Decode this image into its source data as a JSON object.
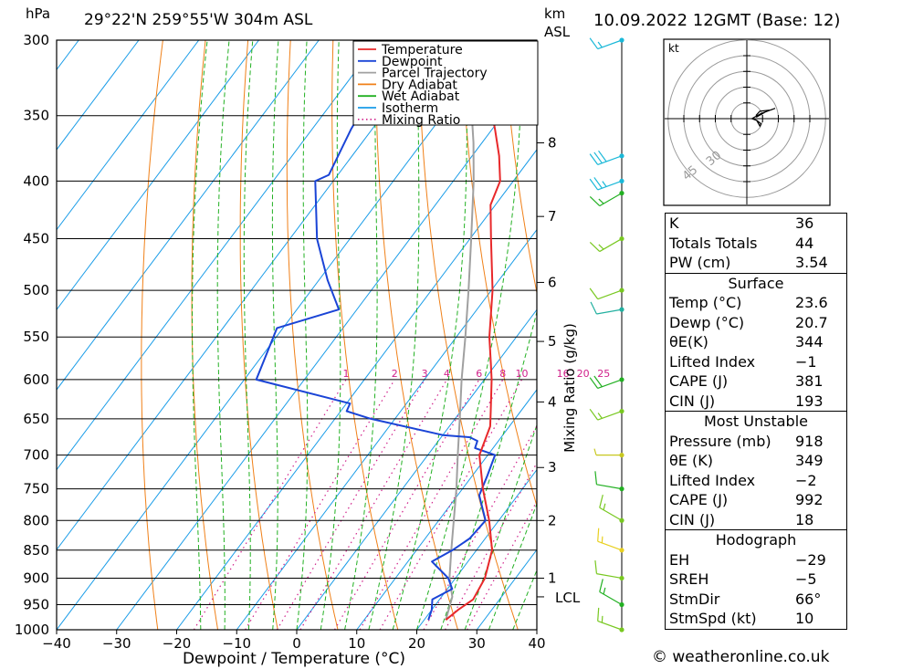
{
  "header": {
    "unit_left": "hPa",
    "location": "29°22'N  259°55'W  304m  ASL",
    "unit_km": "km",
    "unit_asl": "ASL",
    "datetime": "10.09.2022  12GMT  (Base: 12)"
  },
  "chart_data": {
    "type": "skew-t",
    "xlabel": "Dewpoint / Temperature (°C)",
    "ylabel_left": "hPa",
    "ylabel_right": "Mixing Ratio (g/kg)",
    "x_ticks": [
      -40,
      -30,
      -20,
      -10,
      0,
      10,
      20,
      30,
      40
    ],
    "xlim": [
      -40,
      40
    ],
    "pressure_levels": [
      300,
      350,
      400,
      450,
      500,
      550,
      600,
      650,
      700,
      750,
      800,
      850,
      900,
      950,
      1000
    ],
    "ylim": [
      1000,
      300
    ],
    "km_ticks": [
      {
        "label": "8",
        "p": 370
      },
      {
        "label": "7",
        "p": 430
      },
      {
        "label": "6",
        "p": 492
      },
      {
        "label": "5",
        "p": 555
      },
      {
        "label": "4",
        "p": 628
      },
      {
        "label": "3",
        "p": 718
      },
      {
        "label": "2",
        "p": 800
      },
      {
        "label": "1",
        "p": 900
      }
    ],
    "lcl": {
      "label": "LCL",
      "p": 935
    },
    "mixing_ratio_labels": [
      "1",
      "2",
      "3",
      "4",
      "6",
      "8",
      "10",
      "16",
      "20",
      "25"
    ],
    "mixing_ratio_values": [
      1,
      2,
      3,
      4,
      6,
      8,
      10,
      16,
      20,
      25
    ],
    "legend": {
      "position": "top-center",
      "entries": [
        {
          "name": "Temperature",
          "color": "#e8282a",
          "style": "solid"
        },
        {
          "name": "Dewpoint",
          "color": "#1a44d6",
          "style": "solid"
        },
        {
          "name": "Parcel Trajectory",
          "color": "#a0a0a0",
          "style": "solid"
        },
        {
          "name": "Dry Adiabat",
          "color": "#f08018",
          "style": "solid"
        },
        {
          "name": "Wet Adiabat",
          "color": "#22b022",
          "style": "solid"
        },
        {
          "name": "Isotherm",
          "color": "#1a9ce8",
          "style": "solid"
        },
        {
          "name": "Mixing Ratio",
          "color": "#d0208a",
          "style": "dotted"
        }
      ]
    },
    "series": [
      {
        "name": "Temperature",
        "points": [
          [
            980,
            23.6
          ],
          [
            960,
            24.4
          ],
          [
            940,
            25.6
          ],
          [
            900,
            24.9
          ],
          [
            850,
            22.6
          ],
          [
            800,
            18.4
          ],
          [
            750,
            13.4
          ],
          [
            700,
            8.6
          ],
          [
            660,
            6.8
          ],
          [
            640,
            5.0
          ],
          [
            600,
            1.2
          ],
          [
            580,
            -1.0
          ],
          [
            550,
            -4.5
          ],
          [
            500,
            -9.8
          ],
          [
            450,
            -16.5
          ],
          [
            420,
            -20.8
          ],
          [
            400,
            -22.2
          ],
          [
            380,
            -25.5
          ],
          [
            360,
            -29.5
          ],
          [
            335,
            -35.0
          ]
        ]
      },
      {
        "name": "Dewpoint",
        "points": [
          [
            980,
            20.7
          ],
          [
            960,
            20.0
          ],
          [
            940,
            18.8
          ],
          [
            920,
            20.8
          ],
          [
            900,
            18.8
          ],
          [
            870,
            14.0
          ],
          [
            850,
            16.0
          ],
          [
            830,
            17.4
          ],
          [
            800,
            17.8
          ],
          [
            760,
            13.6
          ],
          [
            730,
            12.5
          ],
          [
            700,
            11.2
          ],
          [
            690,
            7.0
          ],
          [
            680,
            6.5
          ],
          [
            675,
            4.8
          ],
          [
            672,
            0.0
          ],
          [
            650,
            -14.0
          ],
          [
            640,
            -19.0
          ],
          [
            630,
            -19.4
          ],
          [
            600,
            -38.0
          ],
          [
            540,
            -41.0
          ],
          [
            520,
            -33.0
          ],
          [
            490,
            -38.5
          ],
          [
            450,
            -45.5
          ],
          [
            400,
            -53.0
          ],
          [
            395,
            -51.5
          ],
          [
            360,
            -53.5
          ],
          [
            335,
            -54.5
          ]
        ]
      },
      {
        "name": "Parcel Trajectory",
        "points": [
          [
            980,
            23.6
          ],
          [
            935,
            21.8
          ],
          [
            900,
            19.0
          ],
          [
            850,
            15.8
          ],
          [
            800,
            12.5
          ],
          [
            750,
            9.0
          ],
          [
            700,
            5.0
          ],
          [
            650,
            0.8
          ],
          [
            600,
            -3.8
          ],
          [
            550,
            -8.5
          ],
          [
            500,
            -13.8
          ],
          [
            450,
            -19.8
          ],
          [
            400,
            -26.6
          ],
          [
            370,
            -31.4
          ],
          [
            340,
            -37.0
          ],
          [
            320,
            -41.5
          ],
          [
            300,
            -46.0
          ]
        ]
      }
    ]
  },
  "hodograph": {
    "unit": "kt",
    "ring_labels": [
      "30",
      "45"
    ]
  },
  "wind_profile": {
    "barbs": [
      {
        "p": 300,
        "speed": 15,
        "dir": 250,
        "color": "#1ab8d8"
      },
      {
        "p": 380,
        "speed": 30,
        "dir": 250,
        "color": "#1ab8d8"
      },
      {
        "p": 400,
        "speed": 25,
        "dir": 250,
        "color": "#1ab8d8"
      },
      {
        "p": 410,
        "speed": 15,
        "dir": 240,
        "color": "#22b022"
      },
      {
        "p": 450,
        "speed": 15,
        "dir": 240,
        "color": "#78c820"
      },
      {
        "p": 500,
        "speed": 10,
        "dir": 250,
        "color": "#78c820"
      },
      {
        "p": 520,
        "speed": 10,
        "dir": 260,
        "color": "#22b0a0"
      },
      {
        "p": 600,
        "speed": 20,
        "dir": 250,
        "color": "#22b022"
      },
      {
        "p": 640,
        "speed": 15,
        "dir": 250,
        "color": "#78c820"
      },
      {
        "p": 700,
        "speed": 5,
        "dir": 270,
        "color": "#c8c820"
      },
      {
        "p": 750,
        "speed": 10,
        "dir": 280,
        "color": "#22b022"
      },
      {
        "p": 800,
        "speed": 15,
        "dir": 300,
        "color": "#78c820"
      },
      {
        "p": 850,
        "speed": 15,
        "dir": 290,
        "color": "#e8d020"
      },
      {
        "p": 900,
        "speed": 10,
        "dir": 280,
        "color": "#78c820"
      },
      {
        "p": 950,
        "speed": 15,
        "dir": 300,
        "color": "#22b022"
      },
      {
        "p": 1000,
        "speed": 15,
        "dir": 290,
        "color": "#78c820"
      }
    ]
  },
  "indices": {
    "k_label": "K",
    "k_value": "36",
    "tt_label": "Totals Totals",
    "tt_value": "44",
    "pw_label": "PW (cm)",
    "pw_value": "3.54"
  },
  "surface": {
    "title": "Surface",
    "temp_label": "Temp (°C)",
    "temp_value": "23.6",
    "dewp_label": "Dewp (°C)",
    "dewp_value": "20.7",
    "theta_label": "θE(K)",
    "theta_value": "344",
    "li_label": "Lifted Index",
    "li_value": "−1",
    "cape_label": "CAPE (J)",
    "cape_value": "381",
    "cin_label": "CIN (J)",
    "cin_value": "193"
  },
  "most_unstable": {
    "title": "Most Unstable",
    "pres_label": "Pressure (mb)",
    "pres_value": "918",
    "theta_label": "θE (K)",
    "theta_value": "349",
    "li_label": "Lifted Index",
    "li_value": "−2",
    "cape_label": "CAPE (J)",
    "cape_value": "992",
    "cin_label": "CIN (J)",
    "cin_value": "18"
  },
  "hodograph_stats": {
    "title": "Hodograph",
    "eh_label": "EH",
    "eh_value": "−29",
    "sreh_label": "SREH",
    "sreh_value": "−5",
    "stmdir_label": "StmDir",
    "stmdir_value": "66°",
    "stmspd_label": "StmSpd (kt)",
    "stmspd_value": "10"
  },
  "footer": {
    "copyright": "© weatheronline.co.uk"
  }
}
